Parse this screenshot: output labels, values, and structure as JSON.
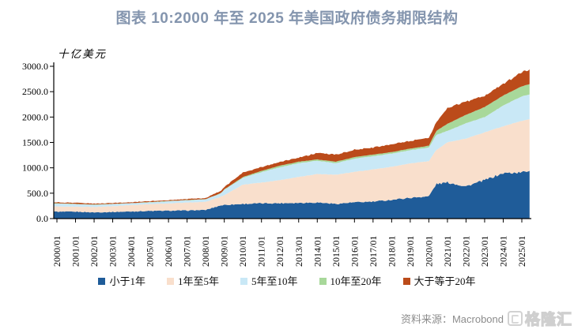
{
  "title": "图表 10:2000 年至 2025 年美国政府债务期限结构",
  "chart_data": {
    "type": "area",
    "stacked": true,
    "title": "图表 10:2000 年至 2025 年美国政府债务期限结构",
    "unit_label": "十亿美元",
    "grid": false,
    "legend_position": "bottom",
    "ylim": [
      0,
      3000
    ],
    "y_ticks": [
      0,
      500,
      1000,
      1500,
      2000,
      2500,
      3000
    ],
    "y_tick_labels": [
      "0.0",
      "500.0",
      "1000.0",
      "1500.0",
      "2000.0",
      "2500.0",
      "3000.0"
    ],
    "x_tick_labels": [
      "2000/01",
      "2001/01",
      "2002/01",
      "2003/01",
      "2004/01",
      "2005/01",
      "2006/01",
      "2007/01",
      "2008/01",
      "2009/01",
      "2010/01",
      "2011/01",
      "2012/01",
      "2013/01",
      "2014/01",
      "2015/01",
      "2016/01",
      "2017/01",
      "2018/01",
      "2019/01",
      "2020/01",
      "2021/01",
      "2022/01",
      "2023/01",
      "2024/01",
      "2025/01"
    ],
    "x": [
      2000,
      2001,
      2002,
      2003,
      2004,
      2005,
      2006,
      2007,
      2008,
      2008.8,
      2009,
      2010,
      2011,
      2012,
      2013,
      2014,
      2015,
      2016,
      2017,
      2018,
      2019,
      2020,
      2020.4,
      2021,
      2022,
      2023,
      2024,
      2025,
      2025.45
    ],
    "series": [
      {
        "name": "小于1年",
        "color": "#1F5C99",
        "values": [
          135,
          135,
          122,
          130,
          140,
          150,
          155,
          160,
          170,
          260,
          270,
          288,
          300,
          303,
          310,
          318,
          290,
          320,
          333,
          370,
          409,
          440,
          680,
          712,
          636,
          758,
          894,
          909,
          950
        ]
      },
      {
        "name": "1年至5年",
        "color": "#F9DFCC",
        "values": [
          105,
          100,
          106,
          115,
          125,
          135,
          145,
          155,
          160,
          170,
          190,
          380,
          410,
          455,
          510,
          560,
          575,
          600,
          635,
          650,
          680,
          690,
          670,
          790,
          940,
          940,
          925,
          1015,
          1010
        ]
      },
      {
        "name": "5年至10年",
        "color": "#C9E8F6",
        "values": [
          55,
          50,
          44,
          40,
          35,
          35,
          40,
          45,
          50,
          60,
          105,
          135,
          205,
          255,
          270,
          262,
          226,
          260,
          262,
          260,
          259,
          270,
          300,
          225,
          303,
          302,
          408,
          485,
          490
        ]
      },
      {
        "name": "10年至20年",
        "color": "#A8D89A",
        "values": [
          7,
          7,
          6,
          6,
          6,
          6,
          6,
          6,
          5,
          8,
          10,
          15,
          25,
          30,
          30,
          25,
          30,
          30,
          30,
          30,
          31,
          35,
          76,
          140,
          166,
          197,
          197,
          197,
          200
        ]
      },
      {
        "name": "大于等于20年",
        "color": "#BB4B1A",
        "values": [
          20,
          18,
          17,
          17,
          17,
          17,
          19,
          19,
          20,
          45,
          45,
          91,
          75,
          78,
          80,
          125,
          137,
          150,
          140,
          150,
          151,
          160,
          167,
          315,
          258,
          227,
          228,
          273,
          290
        ]
      }
    ]
  },
  "footer": {
    "source": "资料来源：Macrobond，兴业研究"
  },
  "watermark": {
    "text": "格隆汇"
  }
}
